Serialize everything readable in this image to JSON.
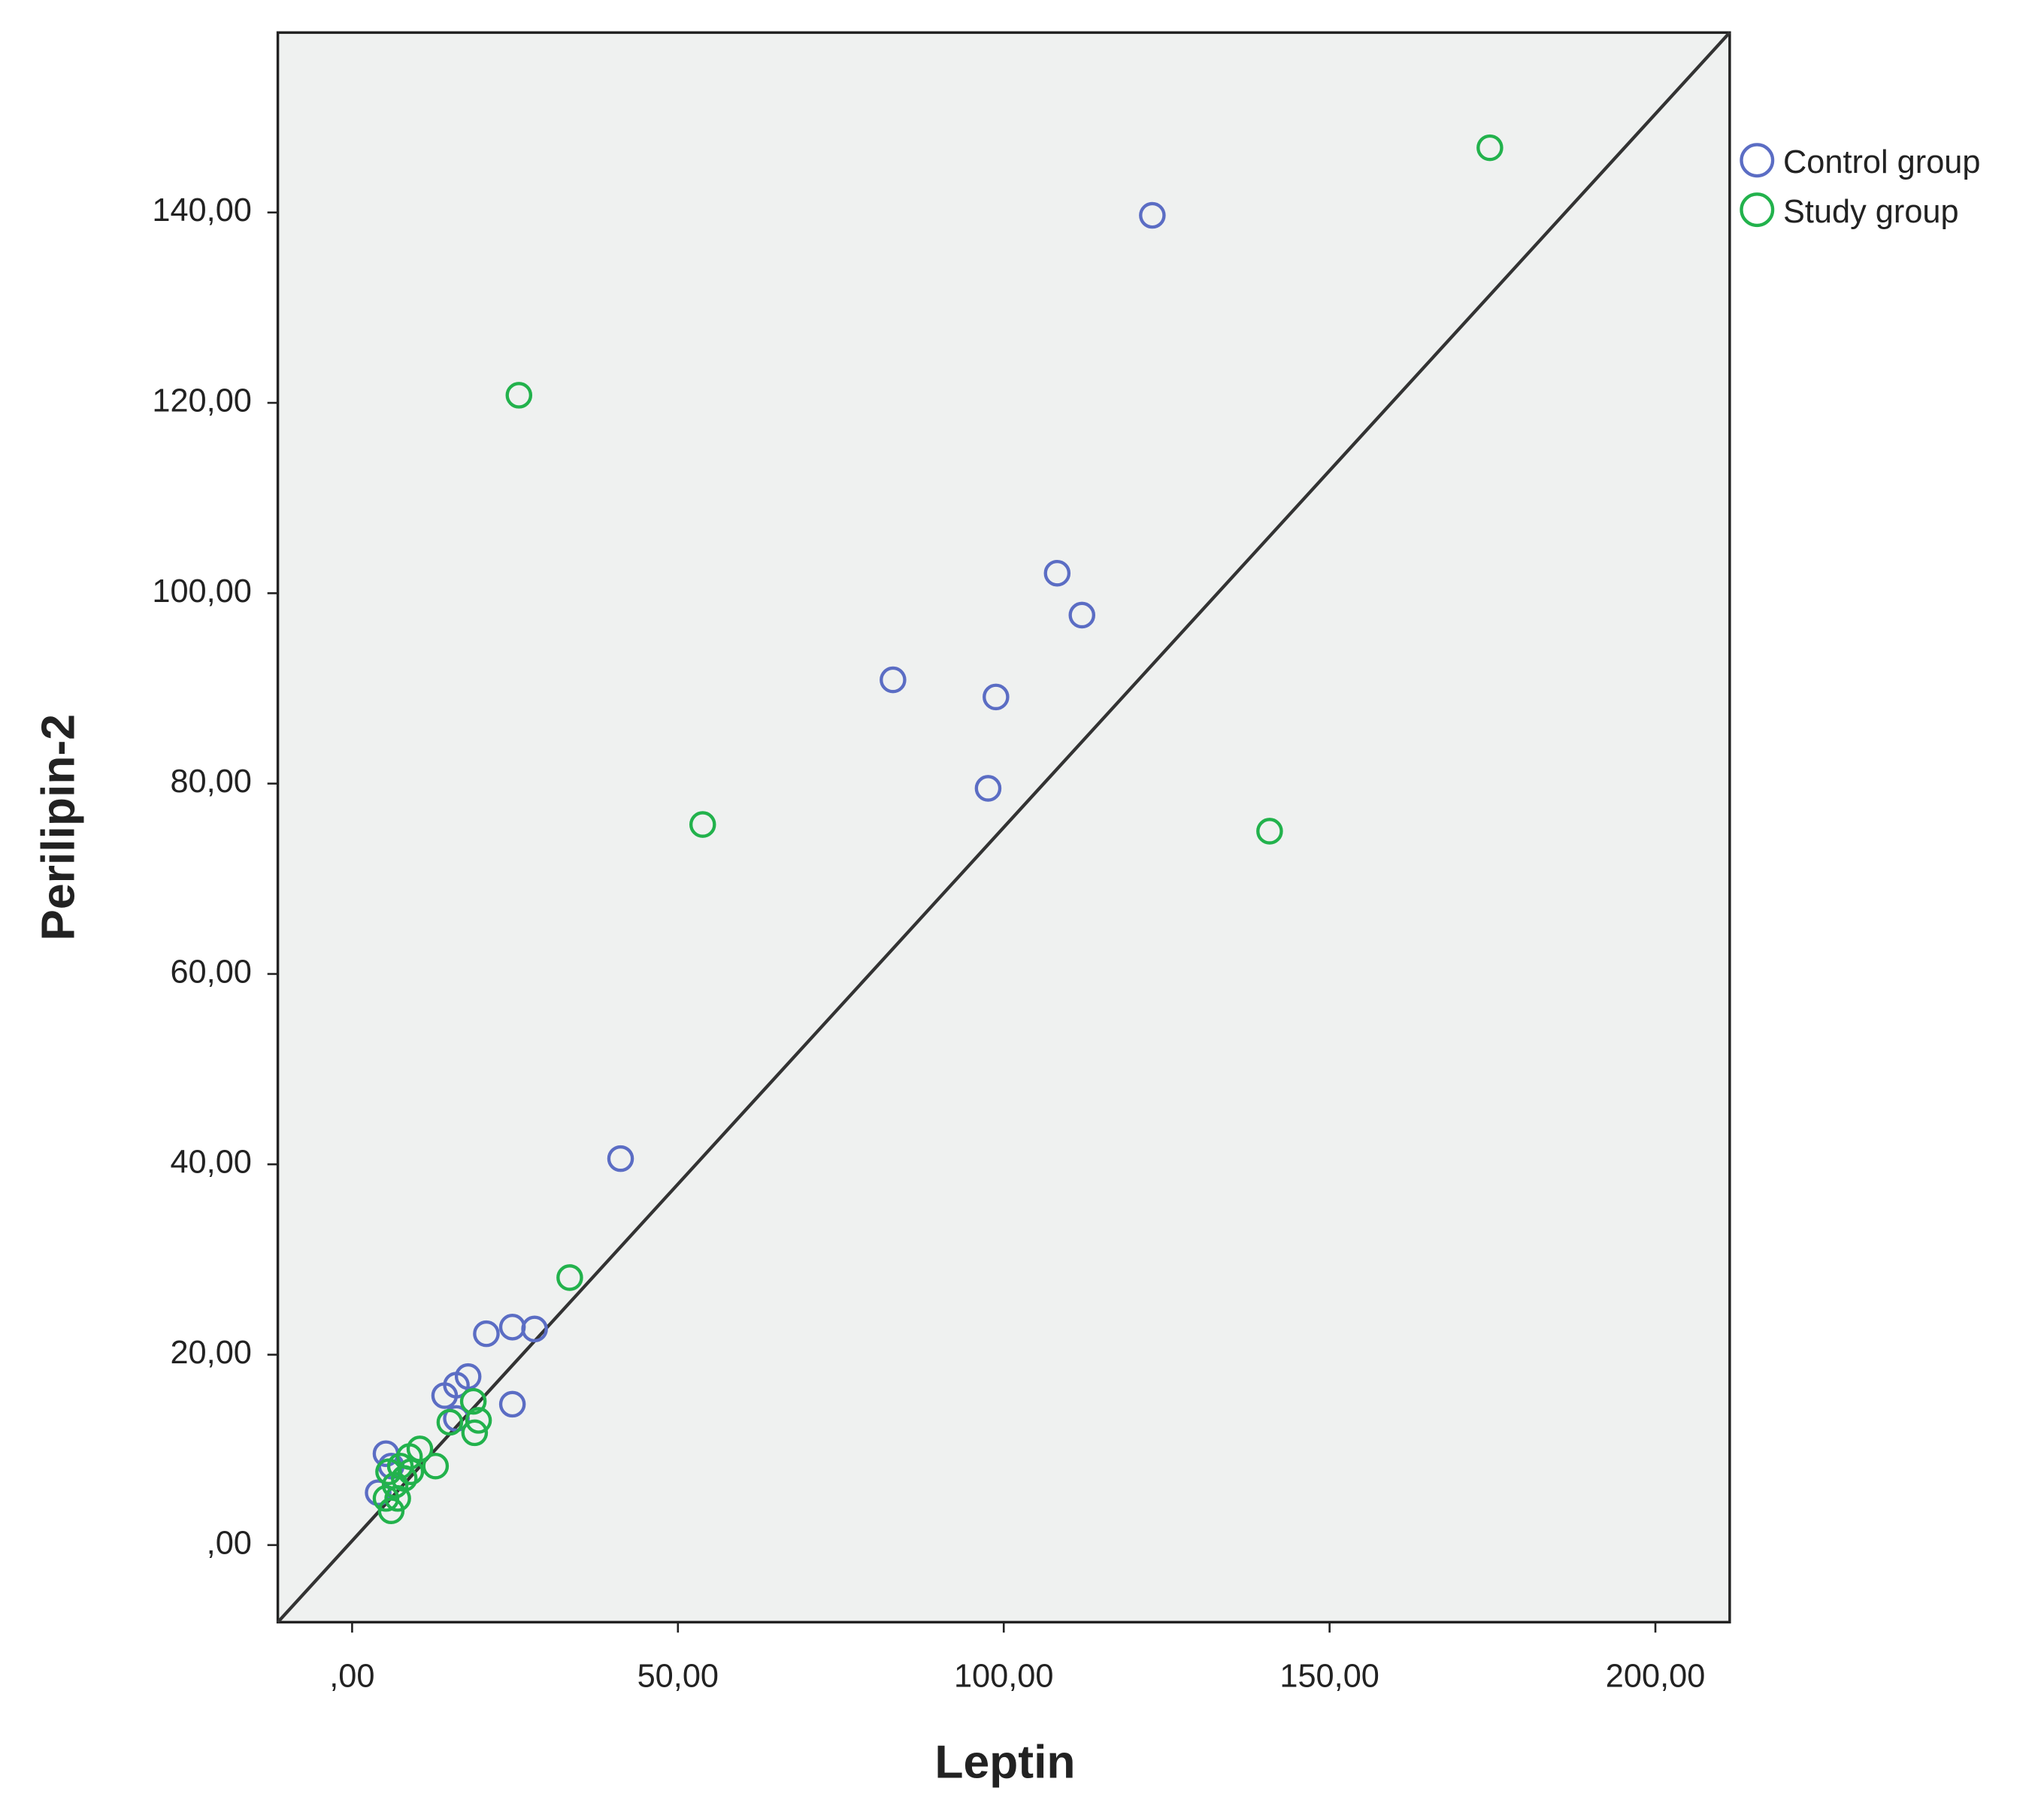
{
  "chart_data": {
    "type": "scatter",
    "x_label": "Leptin",
    "y_label": "Perilipin-2",
    "xlim": [
      -11.4,
      211.4
    ],
    "ylim": [
      -8.1,
      158.9
    ],
    "xticks": [
      {
        "value": 0,
        "label": ",00"
      },
      {
        "value": 50,
        "label": "50,00"
      },
      {
        "value": 100,
        "label": "100,00"
      },
      {
        "value": 150,
        "label": "150,00"
      },
      {
        "value": 200,
        "label": "200,00"
      }
    ],
    "yticks": [
      {
        "value": 0,
        "label": ",00"
      },
      {
        "value": 20,
        "label": "20,00"
      },
      {
        "value": 40,
        "label": "40,00"
      },
      {
        "value": 60,
        "label": "60,00"
      },
      {
        "value": 80,
        "label": "80,00"
      },
      {
        "value": 100,
        "label": "100,00"
      },
      {
        "value": 120,
        "label": "120,00"
      },
      {
        "value": 140,
        "label": "140,00"
      }
    ],
    "series": [
      {
        "name": "Control group",
        "color": "#5b6dc4",
        "x": [
          122.8,
          108.2,
          112,
          83,
          98.8,
          97.6,
          41.2,
          20.6,
          24.6,
          28,
          24.6,
          14.2,
          16,
          17.8,
          16,
          4,
          5.2,
          6
        ],
        "values": [
          139.7,
          102.1,
          97.7,
          90.9,
          89.1,
          79.5,
          40.6,
          22.2,
          22.9,
          22.7,
          14.8,
          15.7,
          16.8,
          17.7,
          13.3,
          5.5,
          9.6,
          8.3
        ]
      },
      {
        "name": "Study group",
        "color": "#22b24c",
        "x": [
          174.6,
          25.6,
          53.8,
          140.8,
          33.4,
          18.6,
          19.4,
          18.8,
          15,
          12.8,
          10.4,
          8.8,
          8,
          7,
          6,
          5.2,
          6.6,
          9,
          7.4,
          5.6
        ],
        "values": [
          146.8,
          120.8,
          75.7,
          75,
          28.1,
          15.1,
          13.1,
          11.8,
          12.9,
          8.3,
          10.1,
          9.3,
          7,
          4.9,
          3.6,
          4.9,
          6.3,
          7.7,
          8.3,
          7.7
        ]
      }
    ],
    "background": "#eff1f0"
  }
}
